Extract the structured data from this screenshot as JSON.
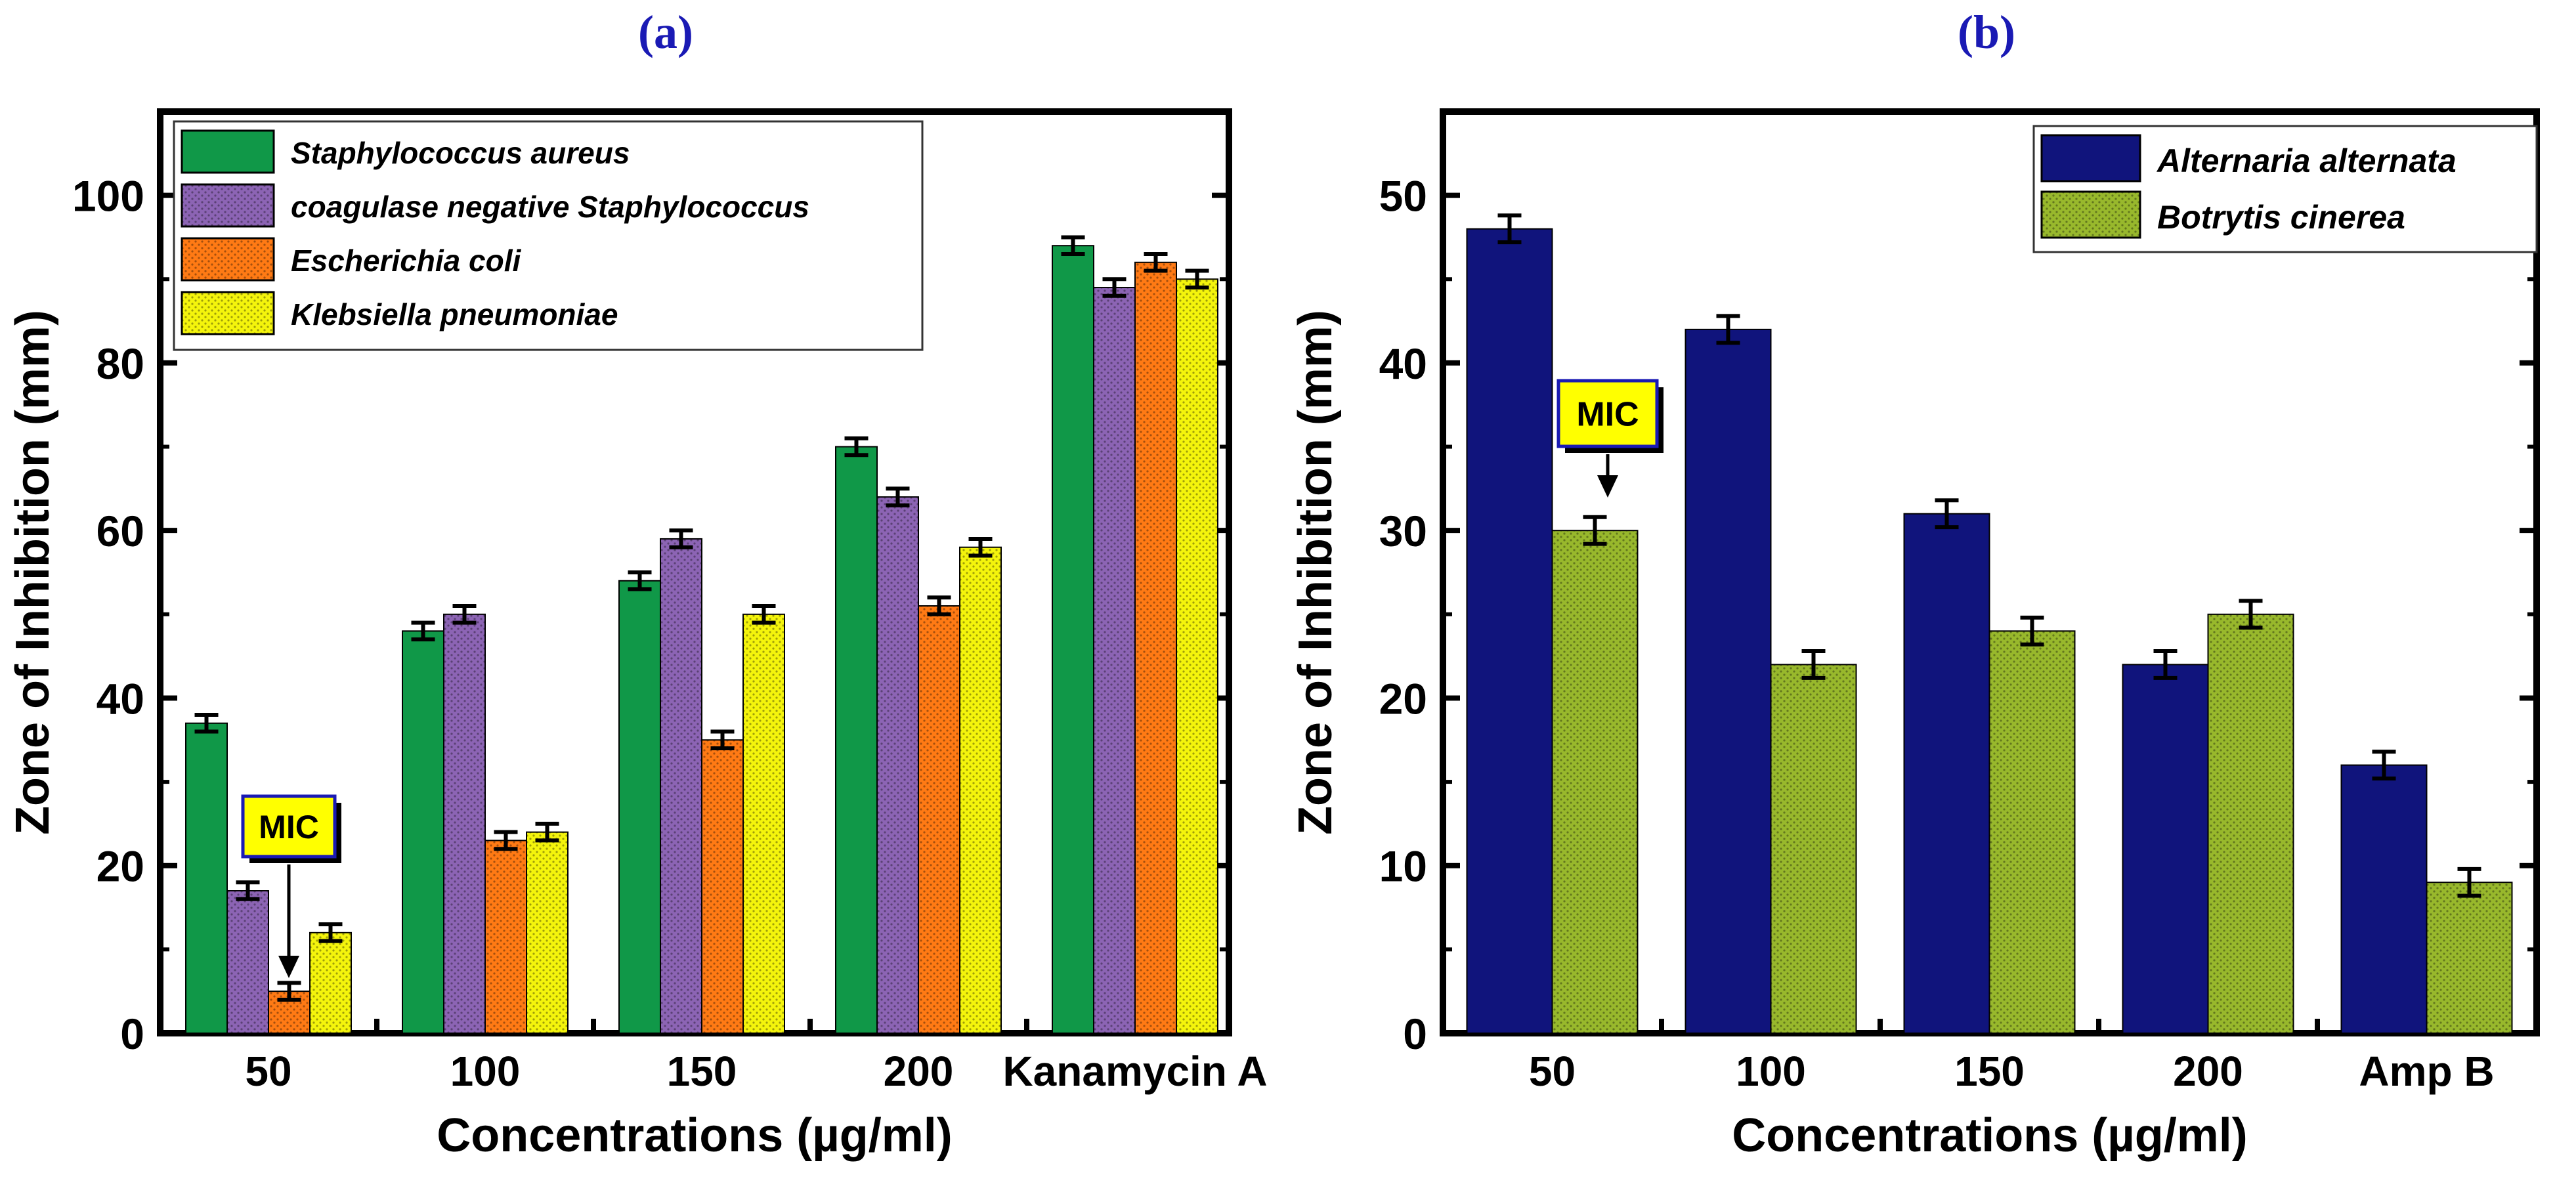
{
  "panel_titles": {
    "a": "(a)",
    "b": "(b)"
  },
  "chart_data": [
    {
      "type": "bar",
      "panel": "(a)",
      "title": "(a)",
      "xlabel": "Concentrations (µg/ml)",
      "ylabel": "Zone of Inhibition (mm)",
      "ylim": [
        0,
        110
      ],
      "yticks": [
        0,
        20,
        40,
        60,
        80,
        100
      ],
      "categories": [
        "50",
        "100",
        "150",
        "200",
        "Kanamycin A"
      ],
      "legend_position": "top-left",
      "series": [
        {
          "name": "Staphylococcus aureus",
          "values": [
            37,
            48,
            54,
            70,
            94
          ],
          "errors": [
            1,
            1,
            1,
            1,
            1
          ],
          "color": "#109848",
          "pattern": "solid"
        },
        {
          "name": "coagulase negative Staphylococcus",
          "values": [
            17,
            50,
            59,
            64,
            89
          ],
          "errors": [
            1,
            1,
            1,
            1,
            1
          ],
          "color": "#8c64b4",
          "pattern": "dots"
        },
        {
          "name": "Escherichia coli",
          "values": [
            5,
            23,
            35,
            51,
            92
          ],
          "errors": [
            1,
            1,
            1,
            1,
            1
          ],
          "color": "#ff7a14",
          "pattern": "dots"
        },
        {
          "name": "Klebsiella pneumoniae",
          "values": [
            12,
            24,
            50,
            58,
            90
          ],
          "errors": [
            1,
            1,
            1,
            1,
            1
          ],
          "color": "#f4f40c",
          "pattern": "dots"
        }
      ],
      "annotation": {
        "text": "MIC",
        "category": "50",
        "series": "Escherichia coli"
      }
    },
    {
      "type": "bar",
      "panel": "(b)",
      "title": "(b)",
      "xlabel": "Concentrations (µg/ml)",
      "ylabel": "Zone of Inhibition (mm)",
      "ylim": [
        0,
        55
      ],
      "yticks": [
        0,
        10,
        20,
        30,
        40,
        50
      ],
      "categories": [
        "50",
        "100",
        "150",
        "200",
        "Amp B"
      ],
      "legend_position": "top-right",
      "series": [
        {
          "name": "Alternaria alternata",
          "values": [
            48,
            42,
            31,
            22,
            16
          ],
          "errors": [
            0.8,
            0.8,
            0.8,
            0.8,
            0.8
          ],
          "color": "#10147c",
          "pattern": "solid"
        },
        {
          "name": "Botrytis cinerea",
          "values": [
            30,
            22,
            24,
            25,
            9
          ],
          "errors": [
            0.8,
            0.8,
            0.8,
            0.8,
            0.8
          ],
          "color": "#98b82c",
          "pattern": "dots"
        }
      ],
      "annotation": {
        "text": "MIC",
        "category": "50",
        "series": "Botrytis cinerea"
      }
    }
  ]
}
